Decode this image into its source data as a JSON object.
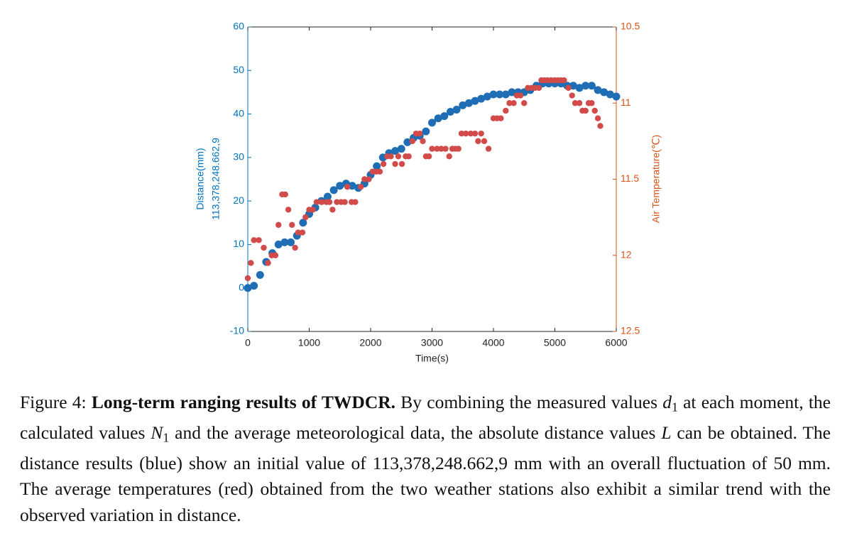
{
  "chart_data": {
    "type": "scatter",
    "xlabel": "Time(s)",
    "ylabel": [
      "Distance(mm)",
      "113,378,248.662,9"
    ],
    "y2label": "Air Temperature(℃)",
    "xlim": [
      0,
      6000
    ],
    "xticks": [
      0,
      1000,
      2000,
      3000,
      4000,
      5000,
      6000
    ],
    "ylim": [
      -10,
      60
    ],
    "yticks": [
      -10,
      0,
      10,
      20,
      30,
      40,
      50,
      60
    ],
    "y2lim": [
      12.5,
      10.5
    ],
    "y2ticks": [
      10.5,
      11,
      11.5,
      12,
      12.5
    ],
    "y_color": "#0072bd",
    "y2_color": "#d95319",
    "series": [
      {
        "color": "#1f6db4",
        "x": [
          0,
          100,
          200,
          300,
          400,
          500,
          600,
          700,
          800,
          900,
          1000,
          1100,
          1200,
          1300,
          1400,
          1500,
          1600,
          1700,
          1800,
          1900,
          2000,
          2100,
          2200,
          2300,
          2400,
          2500,
          2600,
          2700,
          2800,
          2900,
          3000,
          3100,
          3200,
          3300,
          3400,
          3500,
          3600,
          3700,
          3800,
          3900,
          4000,
          4100,
          4200,
          4300,
          4400,
          4500,
          4600,
          4700,
          4800,
          4900,
          5000,
          5100,
          5200,
          5300,
          5400,
          5500,
          5600,
          5700,
          5800,
          5900,
          6000
        ],
        "values": [
          0,
          0.5,
          3,
          6,
          8,
          10,
          10.5,
          10.5,
          12,
          15,
          17,
          18.5,
          20,
          21,
          22.5,
          23.5,
          24,
          23.5,
          23,
          24,
          26,
          28,
          30,
          31,
          31.5,
          32,
          33.5,
          34.5,
          35,
          36,
          38,
          39,
          39.5,
          40.5,
          41,
          42,
          42.5,
          43,
          43.5,
          44,
          44.5,
          44.5,
          44.5,
          45,
          45,
          45,
          45.5,
          46.5,
          47,
          47,
          47,
          47,
          46.5,
          46.5,
          46,
          46.5,
          46.5,
          45.5,
          45,
          44.5,
          44
        ]
      },
      {
        "color": "#d24b4b",
        "axis": "y2",
        "x": [
          0,
          50,
          100,
          180,
          260,
          330,
          390,
          450,
          500,
          560,
          610,
          660,
          720,
          770,
          820,
          890,
          940,
          1000,
          1060,
          1120,
          1200,
          1280,
          1330,
          1380,
          1450,
          1520,
          1580,
          1620,
          1690,
          1750,
          1840,
          1900,
          1970,
          2030,
          2090,
          2150,
          2210,
          2270,
          2330,
          2400,
          2450,
          2510,
          2570,
          2620,
          2680,
          2740,
          2800,
          2850,
          2900,
          2950,
          3000,
          3080,
          3150,
          3220,
          3280,
          3330,
          3380,
          3430,
          3480,
          3550,
          3630,
          3700,
          3750,
          3800,
          3850,
          3920,
          4000,
          4060,
          4120,
          4200,
          4260,
          4330,
          4380,
          4440,
          4500,
          4560,
          4620,
          4680,
          4740,
          4780,
          4830,
          4880,
          4940,
          5000,
          5050,
          5100,
          5150,
          5220,
          5280,
          5330,
          5400,
          5450,
          5500,
          5550,
          5600,
          5650,
          5700,
          5740
        ],
        "values": [
          12.15,
          12.05,
          11.9,
          11.9,
          11.95,
          12.05,
          12.0,
          12.0,
          11.8,
          11.6,
          11.6,
          11.7,
          11.8,
          11.95,
          11.85,
          11.85,
          11.75,
          11.7,
          11.7,
          11.65,
          11.65,
          11.65,
          11.65,
          11.7,
          11.65,
          11.65,
          11.65,
          11.55,
          11.65,
          11.65,
          11.55,
          11.5,
          11.5,
          11.45,
          11.45,
          11.45,
          11.4,
          11.35,
          11.35,
          11.4,
          11.35,
          11.4,
          11.35,
          11.35,
          11.25,
          11.2,
          11.2,
          11.25,
          11.35,
          11.35,
          11.3,
          11.3,
          11.3,
          11.3,
          11.35,
          11.3,
          11.3,
          11.3,
          11.2,
          11.2,
          11.2,
          11.2,
          11.25,
          11.2,
          11.25,
          11.3,
          11.1,
          11.1,
          11.1,
          11.05,
          11.0,
          11.0,
          10.95,
          10.95,
          11.0,
          10.9,
          10.9,
          10.9,
          10.9,
          10.85,
          10.85,
          10.85,
          10.85,
          10.85,
          10.85,
          10.85,
          10.85,
          10.9,
          10.95,
          11.0,
          11.0,
          11.05,
          11.05,
          11.0,
          11.0,
          11.05,
          11.1,
          11.15
        ]
      }
    ]
  },
  "caption": {
    "label": "Figure 4:",
    "title": "Long-term ranging results of TWDCR.",
    "body": [
      "By combining the measured values ",
      {
        "math": "d",
        "sub": "1"
      },
      " at each moment, the calculated values ",
      {
        "math": "N",
        "sub": "1"
      },
      " and the average meteorological data, the absolute distance values ",
      {
        "math": "L"
      },
      " can be obtained. The distance results (blue) show an initial value of 113,378,248.662,9 mm with an overall fluctuation of 50 mm. The average temperatures (red) obtained from the two weather stations also exhibit a similar trend with the observed variation in distance."
    ]
  }
}
